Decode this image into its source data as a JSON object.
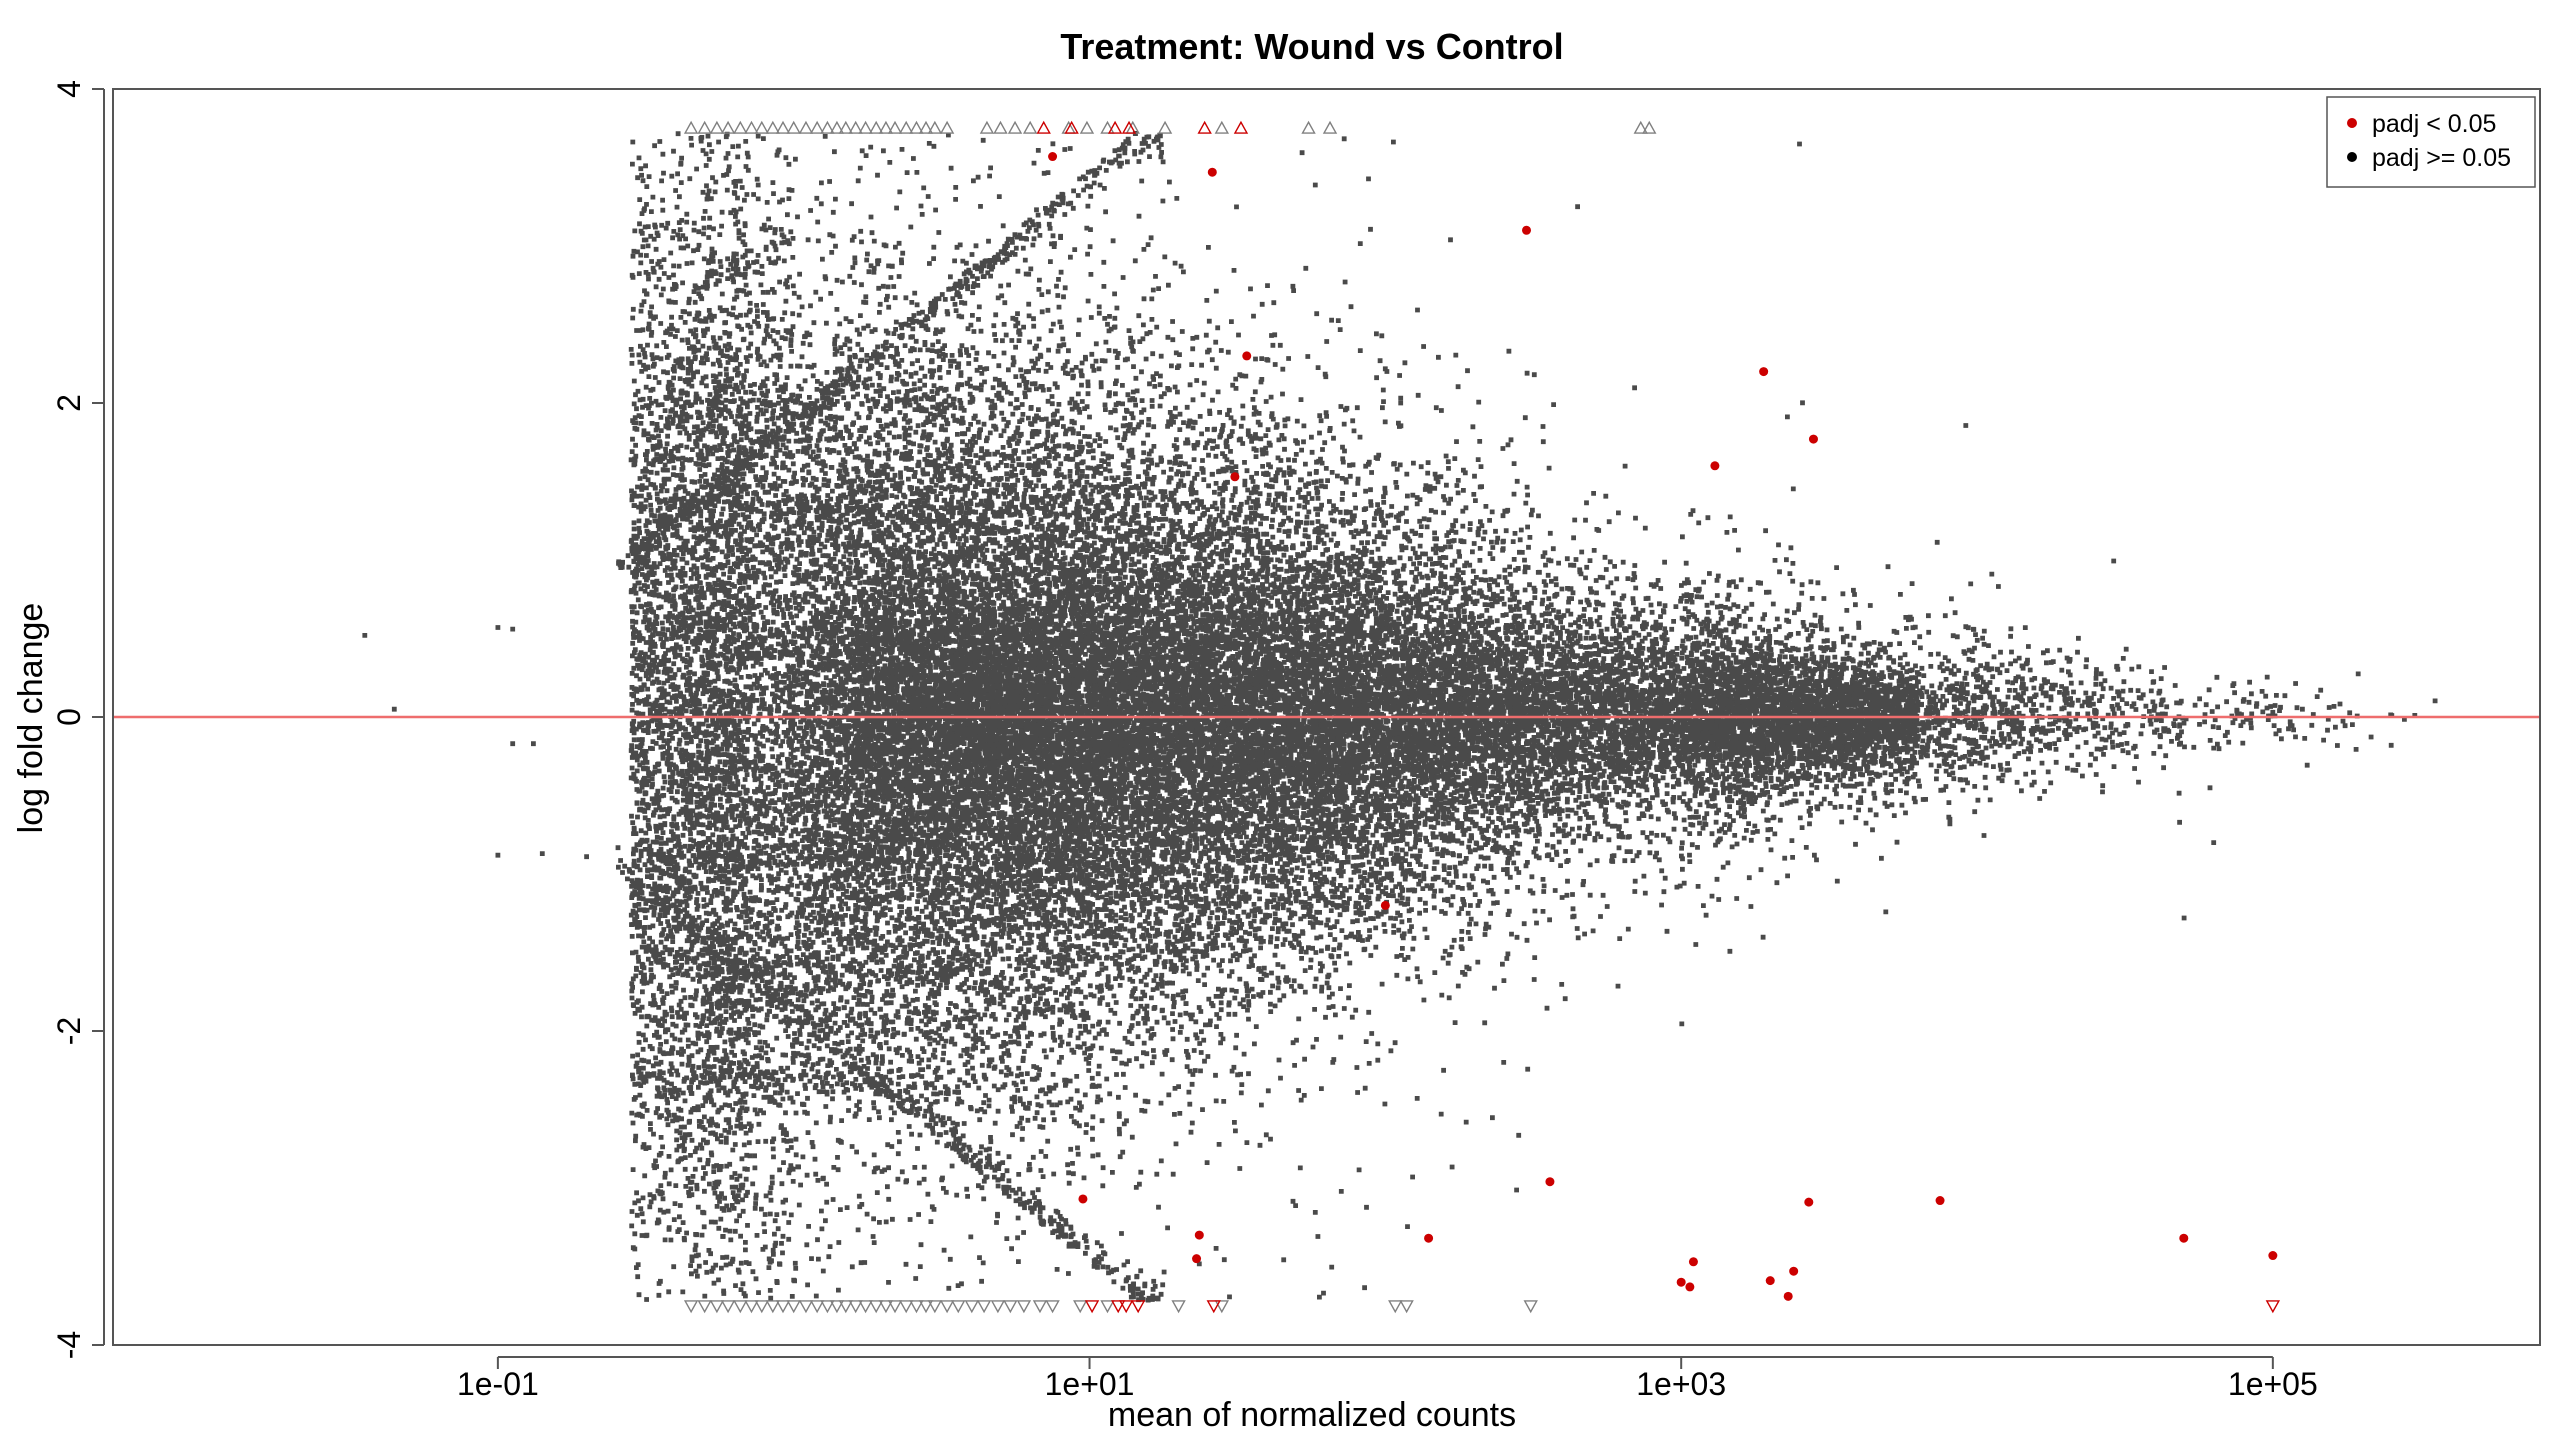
{
  "chart_data": {
    "type": "scatter",
    "title": "Treatment: Wound vs Control",
    "xlabel": "mean of normalized counts",
    "ylabel": "log fold change",
    "x_scale": "log10",
    "xlim": [
      0.005,
      800000
    ],
    "ylim": [
      -4,
      4
    ],
    "x_ticks": [
      {
        "value": 0.1,
        "label": "1e-01"
      },
      {
        "value": 10,
        "label": "1e+01"
      },
      {
        "value": 1000,
        "label": "1e+03"
      },
      {
        "value": 100000,
        "label": "1e+05"
      }
    ],
    "y_ticks": [
      {
        "value": -4,
        "label": "-4"
      },
      {
        "value": -2,
        "label": "-2"
      },
      {
        "value": 0,
        "label": "0"
      },
      {
        "value": 2,
        "label": "2"
      },
      {
        "value": 4,
        "label": "4"
      }
    ],
    "reference_line": {
      "y": 0,
      "color": "#ee6d6d"
    },
    "grid": false,
    "legend": {
      "position": "top-right",
      "entries": [
        {
          "label": "padj < 0.05",
          "color": "#cc0000"
        },
        {
          "label": "padj >= 0.05",
          "color": "#000000"
        }
      ]
    },
    "colors": {
      "nonsignificant": "#4a4a4a",
      "significant": "#cc0000",
      "capped_marker": "#808080"
    },
    "series": [
      {
        "name": "padj < 0.05",
        "points": [
          {
            "x": 7.5,
            "y": 3.57
          },
          {
            "x": 26,
            "y": 3.47
          },
          {
            "x": 34,
            "y": 2.3
          },
          {
            "x": 31,
            "y": 1.53
          },
          {
            "x": 300,
            "y": 3.1
          },
          {
            "x": 1900,
            "y": 2.2
          },
          {
            "x": 2800,
            "y": 1.77
          },
          {
            "x": 1300,
            "y": 1.6
          },
          {
            "x": 100,
            "y": -1.2
          },
          {
            "x": 9.5,
            "y": -3.07
          },
          {
            "x": 23.5,
            "y": -3.3
          },
          {
            "x": 23,
            "y": -3.45
          },
          {
            "x": 140,
            "y": -3.32
          },
          {
            "x": 360,
            "y": -2.96
          },
          {
            "x": 2700,
            "y": -3.09
          },
          {
            "x": 7500,
            "y": -3.08
          },
          {
            "x": 1100,
            "y": -3.47
          },
          {
            "x": 1000,
            "y": -3.6
          },
          {
            "x": 1070,
            "y": -3.63
          },
          {
            "x": 2000,
            "y": -3.59
          },
          {
            "x": 2300,
            "y": -3.69
          },
          {
            "x": 2400,
            "y": -3.53
          },
          {
            "x": 50000,
            "y": -3.32
          },
          {
            "x": 100000,
            "y": -3.43
          }
        ]
      }
    ],
    "capped_markers": {
      "up_y": 3.75,
      "down_y": -3.75,
      "up_black_x": [
        0.45,
        0.5,
        0.55,
        0.6,
        0.66,
        0.72,
        0.78,
        0.85,
        0.92,
        1.0,
        1.1,
        1.2,
        1.3,
        1.4,
        1.5,
        1.62,
        1.75,
        1.9,
        2.05,
        2.2,
        2.4,
        2.6,
        2.8,
        3.0,
        3.3,
        4.5,
        5.0,
        5.6,
        6.3,
        8.5,
        9.8,
        11.5,
        14,
        18,
        28,
        55,
        65,
        730,
        780
      ],
      "up_red_x": [
        7.0,
        8.7,
        12.2,
        13.6,
        24.5,
        32.5
      ],
      "down_black_x": [
        0.45,
        0.5,
        0.55,
        0.6,
        0.66,
        0.72,
        0.78,
        0.85,
        0.92,
        1.0,
        1.1,
        1.2,
        1.3,
        1.4,
        1.5,
        1.62,
        1.75,
        1.9,
        2.05,
        2.2,
        2.4,
        2.6,
        2.8,
        3.0,
        3.3,
        3.6,
        4.0,
        4.4,
        4.9,
        5.4,
        6.0,
        6.8,
        7.5,
        9.3,
        11.5,
        20,
        28,
        108,
        118,
        310
      ],
      "down_red_x": [
        10.2,
        12.5,
        13.3,
        14.6,
        26.3,
        100000
      ]
    }
  }
}
